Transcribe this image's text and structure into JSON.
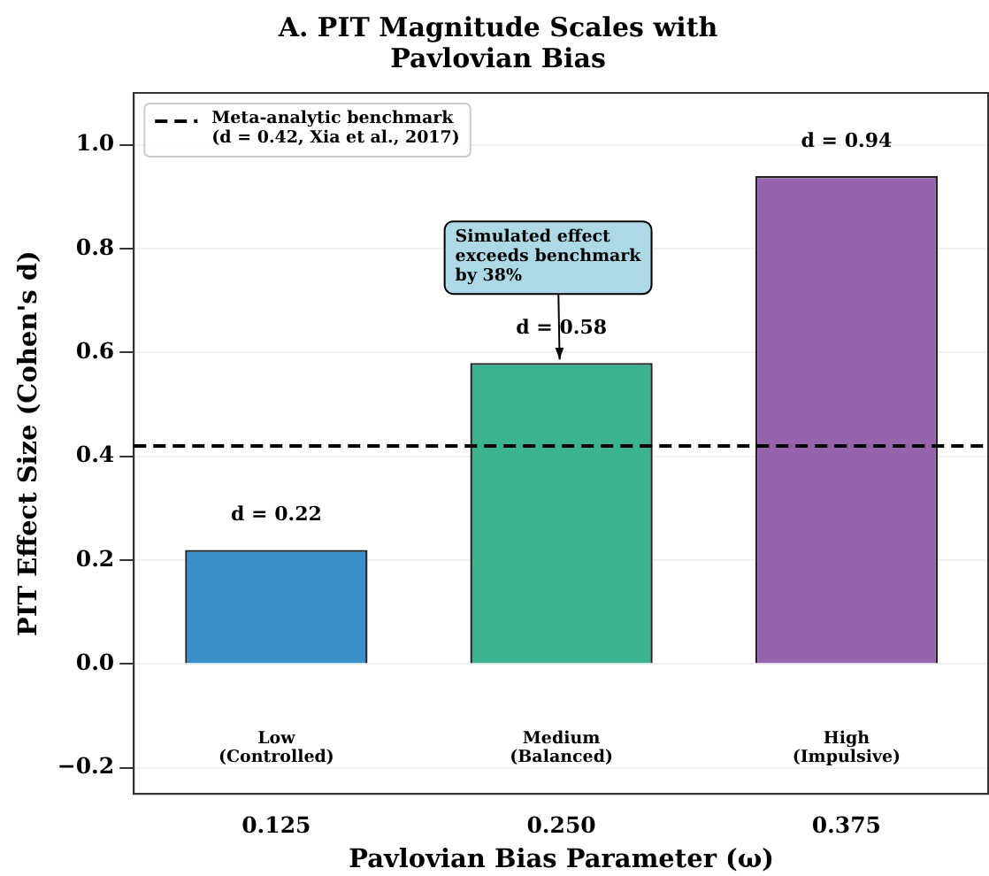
{
  "chart_data": {
    "type": "bar",
    "title": "A. PIT Magnitude Scales with\nPavlovian Bias",
    "xlabel": "Pavlovian Bias Parameter (ω)",
    "ylabel": "PIT Effect Size (Cohen's d)",
    "categories": [
      "0.125",
      "0.250",
      "0.375"
    ],
    "values": [
      0.22,
      0.58,
      0.94
    ],
    "colors": [
      "#3a8fc6",
      "#3bb391",
      "#9664ac"
    ],
    "value_labels": [
      "d = 0.22",
      "d = 0.58",
      "d = 0.94"
    ],
    "ylim": [
      -0.25,
      1.1
    ],
    "yticks": [
      {
        "value": -0.2,
        "label": "−0.2"
      },
      {
        "value": 0,
        "label": "0.0"
      },
      {
        "value": 0.2,
        "label": "0.2"
      },
      {
        "value": 0.4,
        "label": "0.4"
      },
      {
        "value": 0.6,
        "label": "0.6"
      },
      {
        "value": 0.8,
        "label": "0.8"
      },
      {
        "value": 1,
        "label": "1.0"
      }
    ],
    "grid": "y",
    "legend": "top left",
    "ref_lines": [
      {
        "axis": "y",
        "value": 0.42,
        "label": "Meta-analytic benchmark\n(d = 0.42, Xia et al., 2017)",
        "color": "#000000",
        "line_style": "dashed"
      }
    ],
    "annotations": [
      "Low\n(Controlled)",
      "Medium\n(Balanced)",
      "High\n(Impulsive)",
      {
        "text": "Simulated effect\nexceeds benchmark\nby 38%",
        "x": "0.250",
        "y": 0.58
      }
    ]
  }
}
